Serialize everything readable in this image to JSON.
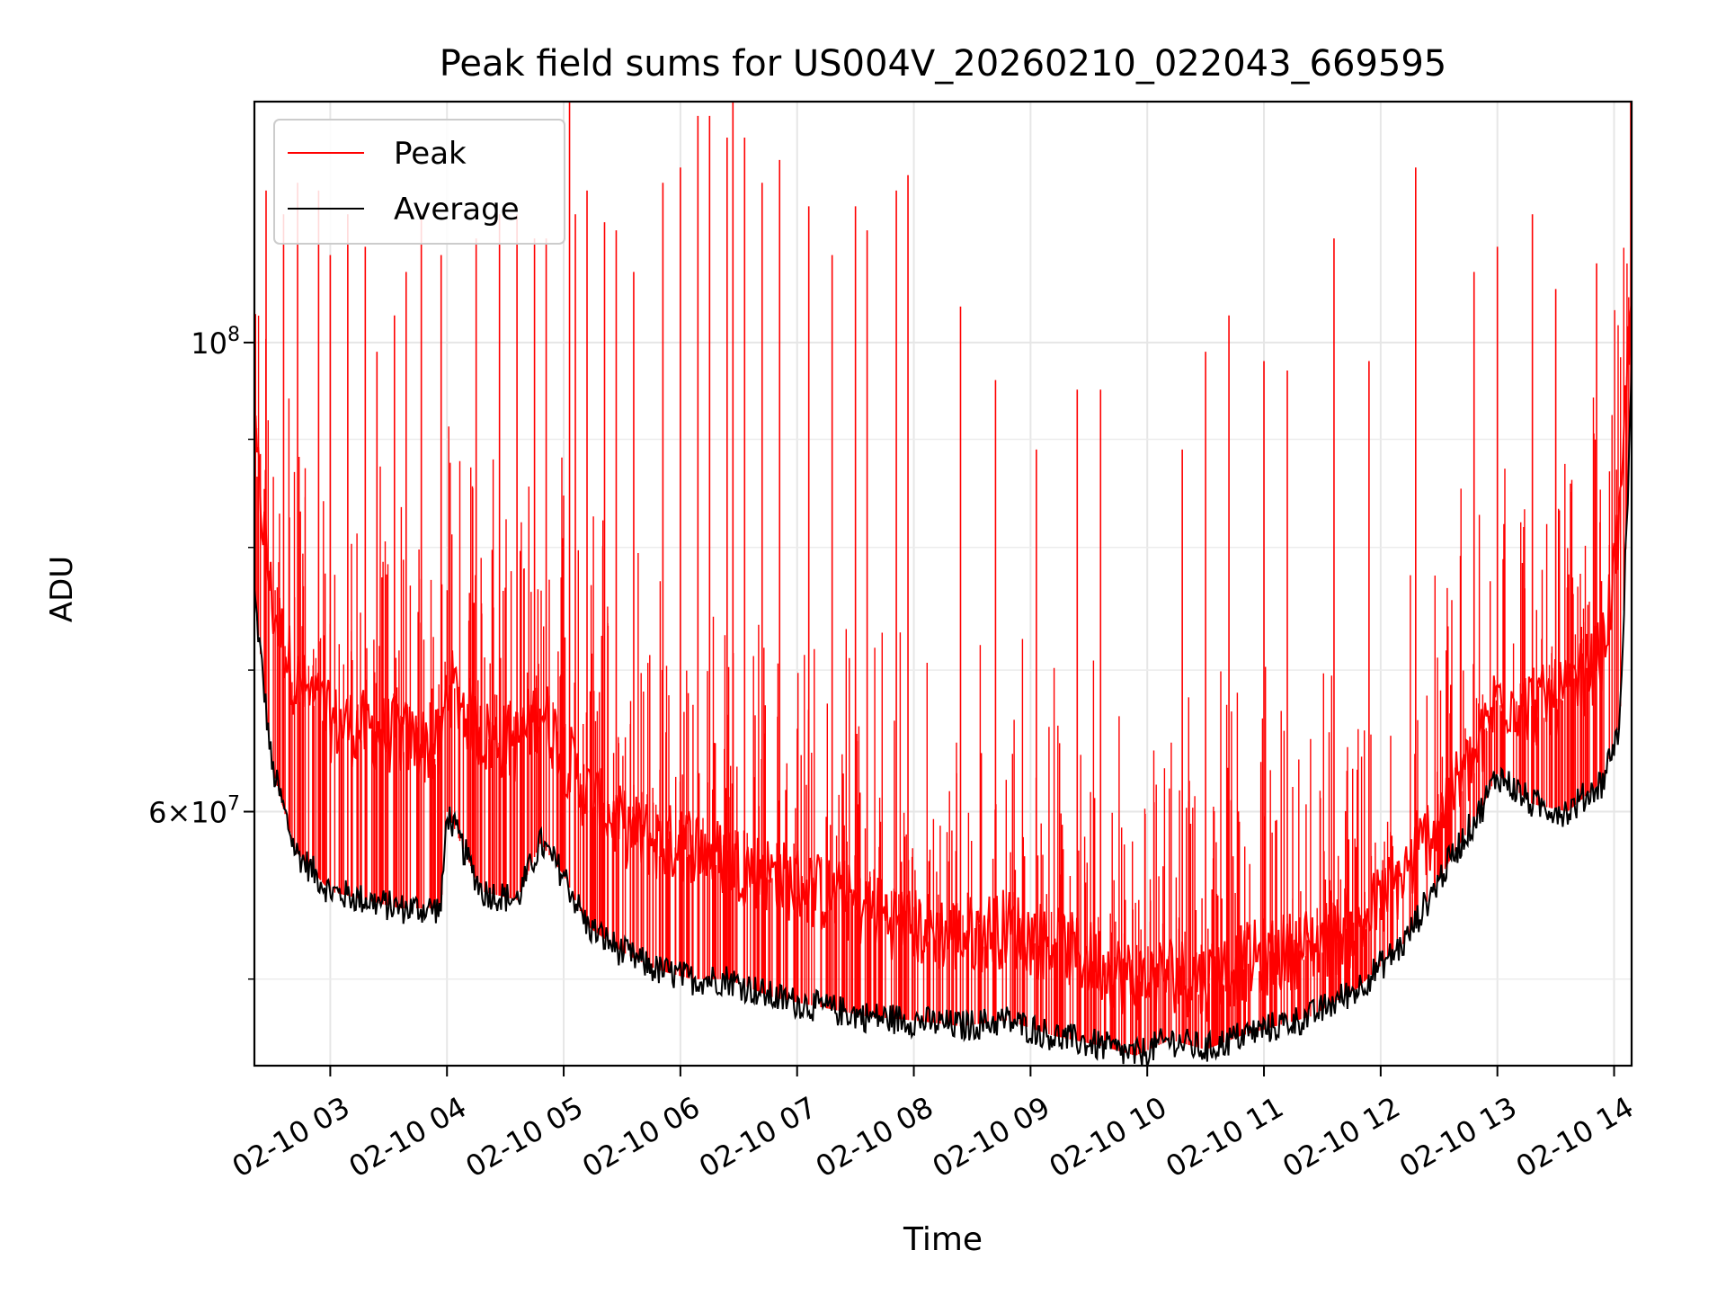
{
  "chart_data": {
    "type": "line",
    "title": "Peak field sums for US004V_20260210_022043_669595",
    "xlabel": "Time",
    "ylabel": "ADU",
    "y_scale": "log",
    "xlim": [
      2.35,
      14.15
    ],
    "ylim": [
      45500000,
      130000000
    ],
    "x_ticks": [
      {
        "value": 3,
        "label": "02-10 03"
      },
      {
        "value": 4,
        "label": "02-10 04"
      },
      {
        "value": 5,
        "label": "02-10 05"
      },
      {
        "value": 6,
        "label": "02-10 06"
      },
      {
        "value": 7,
        "label": "02-10 07"
      },
      {
        "value": 8,
        "label": "02-10 08"
      },
      {
        "value": 9,
        "label": "02-10 09"
      },
      {
        "value": 10,
        "label": "02-10 10"
      },
      {
        "value": 11,
        "label": "02-10 11"
      },
      {
        "value": 12,
        "label": "02-10 12"
      },
      {
        "value": 13,
        "label": "02-10 13"
      },
      {
        "value": 14,
        "label": "02-10 14"
      }
    ],
    "y_major_ticks": [
      {
        "value": 60000000,
        "base": "6×10",
        "exp": "7"
      },
      {
        "value": 100000000,
        "base": "10",
        "exp": "8"
      }
    ],
    "y_minor_gridlines": [
      50000000,
      70000000,
      80000000,
      90000000
    ],
    "grid": true,
    "legend_position": "upper-left",
    "series": [
      {
        "name": "Peak",
        "color": "#ff0000",
        "x": [
          2.35,
          2.5,
          2.7,
          3.0,
          3.3,
          3.6,
          3.95,
          4.0,
          4.3,
          4.6,
          4.8,
          5.0,
          5.2,
          5.5,
          5.8,
          6.1,
          6.4,
          6.8,
          7.2,
          7.6,
          8.0,
          8.4,
          8.8,
          9.2,
          9.6,
          9.9,
          10.2,
          10.5,
          10.8,
          11.1,
          11.4,
          11.8,
          12.2,
          12.6,
          12.85,
          13.0,
          13.3,
          13.6,
          13.9,
          14.05,
          14.15
        ],
        "y": [
          88000000,
          74000000,
          68000000,
          65000000,
          64500000,
          64000000,
          63000000,
          68000000,
          64000000,
          63500000,
          66000000,
          63000000,
          60000000,
          58000000,
          57000000,
          57000000,
          56000000,
          55000000,
          54000000,
          53000000,
          52000000,
          51500000,
          52000000,
          51000000,
          50000000,
          49000000,
          49500000,
          49000000,
          50000000,
          50500000,
          51000000,
          52000000,
          55000000,
          60000000,
          63000000,
          67000000,
          66000000,
          67000000,
          70000000,
          80000000,
          106000000
        ]
      },
      {
        "name": "Average",
        "color": "#000000",
        "x": [
          2.35,
          2.5,
          2.7,
          3.0,
          3.3,
          3.6,
          3.95,
          4.0,
          4.3,
          4.6,
          4.8,
          5.0,
          5.2,
          5.5,
          5.8,
          6.1,
          6.4,
          6.8,
          7.2,
          7.6,
          8.0,
          8.4,
          8.8,
          9.2,
          9.6,
          9.9,
          10.2,
          10.5,
          10.8,
          11.1,
          11.4,
          11.8,
          12.2,
          12.6,
          12.85,
          13.0,
          13.3,
          13.6,
          13.9,
          14.05,
          14.15
        ],
        "y": [
          76000000,
          63000000,
          57500000,
          55000000,
          54500000,
          54000000,
          54000000,
          60000000,
          55000000,
          54500000,
          58000000,
          56000000,
          53000000,
          51500000,
          50500000,
          50000000,
          50000000,
          49000000,
          48500000,
          48000000,
          47800000,
          47500000,
          47800000,
          47000000,
          46500000,
          46000000,
          46800000,
          46300000,
          47000000,
          47500000,
          48000000,
          49500000,
          52000000,
          57000000,
          60000000,
          62500000,
          60500000,
          60000000,
          62000000,
          66000000,
          96000000
        ]
      }
    ],
    "spikes": {
      "series": "Peak",
      "x": [
        2.45,
        2.6,
        2.72,
        2.9,
        3.0,
        3.15,
        3.3,
        3.4,
        3.55,
        3.65,
        3.78,
        3.95,
        4.25,
        4.45,
        4.6,
        4.75,
        4.85,
        5.05,
        5.1,
        5.2,
        5.35,
        5.45,
        5.6,
        5.85,
        6.0,
        6.15,
        6.25,
        6.4,
        6.45,
        6.55,
        6.7,
        6.85,
        7.1,
        7.3,
        7.5,
        7.6,
        7.85,
        7.95,
        8.4,
        8.7,
        9.05,
        9.4,
        9.6,
        10.3,
        10.5,
        10.7,
        11.0,
        11.2,
        11.6,
        11.9,
        12.3,
        12.8,
        13.0,
        13.3,
        13.5,
        13.85
      ],
      "y": [
        118000000,
        115000000,
        119000000,
        118000000,
        110000000,
        115000000,
        111000000,
        99000000,
        103000000,
        108000000,
        115000000,
        110000000,
        112000000,
        115000000,
        115000000,
        112000000,
        112000000,
        132000000,
        115000000,
        118000000,
        114000000,
        113000000,
        108000000,
        119000000,
        121000000,
        128000000,
        128000000,
        125000000,
        130000000,
        125000000,
        119000000,
        122000000,
        116000000,
        110000000,
        116000000,
        113000000,
        118000000,
        120000000,
        104000000,
        96000000,
        89000000,
        95000000,
        95000000,
        89000000,
        99000000,
        103000000,
        98000000,
        97000000,
        112000000,
        98000000,
        121000000,
        108000000,
        111000000,
        115000000,
        106000000,
        109000000
      ]
    },
    "legend": [
      {
        "label": "Peak",
        "color": "#ff0000"
      },
      {
        "label": "Average",
        "color": "#000000"
      }
    ]
  }
}
